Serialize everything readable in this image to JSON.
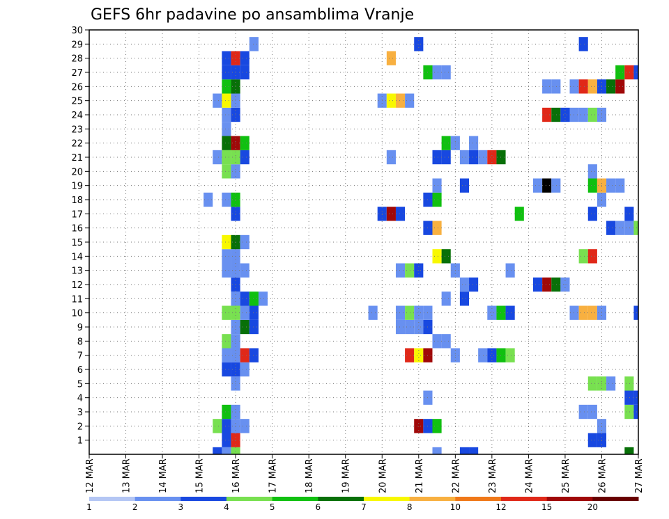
{
  "chart_data": {
    "type": "heatmap",
    "title": "GEFS 6hr padavine po ansamblima Vranje",
    "x_ticks": [
      "12 MAR",
      "13 MAR",
      "14 MAR",
      "15 MAR",
      "16 MAR",
      "17 MAR",
      "18 MAR",
      "19 MAR",
      "20 MAR",
      "21 MAR",
      "22 MAR",
      "23 MAR",
      "24 MAR",
      "25 MAR",
      "26 MAR",
      "27 MAR"
    ],
    "y_ticks": [
      "1",
      "2",
      "3",
      "4",
      "5",
      "6",
      "7",
      "8",
      "9",
      "10",
      "11",
      "12",
      "13",
      "14",
      "15",
      "16",
      "17",
      "18",
      "19",
      "20",
      "21",
      "22",
      "23",
      "24",
      "25",
      "26",
      "27",
      "28",
      "29",
      "30"
    ],
    "x_unit": "day of March, 6-hour steps",
    "xlim": [
      12,
      27
    ],
    "ylim": [
      0,
      30
    ],
    "grid": true,
    "legend_position": "bottom",
    "color_scale": {
      "bins": [
        "1-2",
        "2-3",
        "3-4",
        "4-5",
        "5-6",
        "6-7",
        "7-8",
        "8-10",
        "10-12",
        "12-15",
        "15-20",
        "20+"
      ],
      "labels": [
        "1",
        "2",
        "3",
        "4",
        "5",
        "6",
        "7",
        "8",
        "10",
        "12",
        "15",
        "20"
      ],
      "colors": [
        "#b4c6f4",
        "#6890f0",
        "#1848e0",
        "#78e050",
        "#10c010",
        "#087008",
        "#f8f800",
        "#f8b040",
        "#f07818",
        "#e02818",
        "#a00808",
        "#680000"
      ]
    },
    "cells": [
      [
        15.5,
        0,
        2
      ],
      [
        15.75,
        0,
        1
      ],
      [
        16,
        0,
        3
      ],
      [
        21.5,
        0,
        1
      ],
      [
        22.25,
        0,
        2
      ],
      [
        22.5,
        0,
        2
      ],
      [
        26.75,
        0,
        5
      ],
      [
        15.75,
        1,
        2
      ],
      [
        16,
        1,
        9
      ],
      [
        25.75,
        1,
        2
      ],
      [
        26,
        1,
        2
      ],
      [
        15.5,
        2,
        3
      ],
      [
        15.75,
        2,
        2
      ],
      [
        16,
        2,
        1
      ],
      [
        16.25,
        2,
        1
      ],
      [
        21,
        2,
        10
      ],
      [
        21.25,
        2,
        2
      ],
      [
        21.5,
        2,
        4
      ],
      [
        26,
        2,
        1
      ],
      [
        15.75,
        3,
        4
      ],
      [
        16,
        3,
        1
      ],
      [
        25.5,
        3,
        1
      ],
      [
        25.75,
        3,
        1
      ],
      [
        26.75,
        3,
        3
      ],
      [
        27,
        3,
        2
      ],
      [
        21.25,
        4,
        1
      ],
      [
        26.75,
        4,
        2
      ],
      [
        27,
        4,
        2
      ],
      [
        16,
        5,
        1
      ],
      [
        25.75,
        5,
        3
      ],
      [
        26,
        5,
        3
      ],
      [
        26.25,
        5,
        1
      ],
      [
        26.75,
        5,
        3
      ],
      [
        15.75,
        6,
        2
      ],
      [
        16,
        6,
        2
      ],
      [
        16.25,
        6,
        1
      ],
      [
        15.75,
        7,
        1
      ],
      [
        16,
        7,
        1
      ],
      [
        16.25,
        7,
        9
      ],
      [
        16.5,
        7,
        2
      ],
      [
        20.75,
        7,
        9
      ],
      [
        21,
        7,
        6
      ],
      [
        21.25,
        7,
        10
      ],
      [
        22,
        7,
        1
      ],
      [
        22.75,
        7,
        1
      ],
      [
        23,
        7,
        2
      ],
      [
        23.25,
        7,
        4
      ],
      [
        23.5,
        7,
        3
      ],
      [
        15.75,
        8,
        3
      ],
      [
        16,
        8,
        1
      ],
      [
        21.5,
        8,
        1
      ],
      [
        21.75,
        8,
        1
      ],
      [
        16,
        9,
        1
      ],
      [
        16.25,
        9,
        5
      ],
      [
        16.5,
        9,
        2
      ],
      [
        20.5,
        9,
        1
      ],
      [
        20.75,
        9,
        1
      ],
      [
        21,
        9,
        1
      ],
      [
        21.25,
        9,
        2
      ],
      [
        15.75,
        10,
        3
      ],
      [
        16,
        10,
        3
      ],
      [
        16.25,
        10,
        1
      ],
      [
        16.5,
        10,
        2
      ],
      [
        19.75,
        10,
        1
      ],
      [
        20.5,
        10,
        1
      ],
      [
        20.75,
        10,
        3
      ],
      [
        21,
        10,
        1
      ],
      [
        21.25,
        10,
        1
      ],
      [
        23,
        10,
        1
      ],
      [
        23.25,
        10,
        4
      ],
      [
        23.5,
        10,
        2
      ],
      [
        25.25,
        10,
        1
      ],
      [
        25.5,
        10,
        7
      ],
      [
        25.75,
        10,
        7
      ],
      [
        26,
        10,
        1
      ],
      [
        27,
        10,
        2
      ],
      [
        16,
        11,
        1
      ],
      [
        16.25,
        11,
        2
      ],
      [
        16.5,
        11,
        4
      ],
      [
        16.75,
        11,
        1
      ],
      [
        21.75,
        11,
        1
      ],
      [
        22.25,
        11,
        2
      ],
      [
        16,
        12,
        2
      ],
      [
        22.25,
        12,
        1
      ],
      [
        22.5,
        12,
        2
      ],
      [
        24.25,
        12,
        2
      ],
      [
        24.5,
        12,
        10
      ],
      [
        24.75,
        12,
        5
      ],
      [
        25,
        12,
        1
      ],
      [
        15.75,
        13,
        1
      ],
      [
        16,
        13,
        1
      ],
      [
        16.25,
        13,
        1
      ],
      [
        20.5,
        13,
        1
      ],
      [
        20.75,
        13,
        3
      ],
      [
        21,
        13,
        2
      ],
      [
        22,
        13,
        1
      ],
      [
        23.5,
        13,
        1
      ],
      [
        15.75,
        14,
        1
      ],
      [
        16,
        14,
        1
      ],
      [
        21.5,
        14,
        6
      ],
      [
        21.75,
        14,
        5
      ],
      [
        25.5,
        14,
        3
      ],
      [
        25.75,
        14,
        9
      ],
      [
        15.75,
        15,
        6
      ],
      [
        16,
        15,
        5
      ],
      [
        16.25,
        15,
        1
      ],
      [
        21.25,
        16,
        2
      ],
      [
        21.5,
        16,
        7
      ],
      [
        26.25,
        16,
        2
      ],
      [
        26.5,
        16,
        1
      ],
      [
        26.75,
        16,
        1
      ],
      [
        27,
        16,
        3
      ],
      [
        16,
        17,
        2
      ],
      [
        20,
        17,
        2
      ],
      [
        20.25,
        17,
        10
      ],
      [
        20.5,
        17,
        2
      ],
      [
        23.75,
        17,
        4
      ],
      [
        25.75,
        17,
        2
      ],
      [
        26.75,
        17,
        2
      ],
      [
        15.25,
        18,
        1
      ],
      [
        15.75,
        18,
        1
      ],
      [
        16,
        18,
        4
      ],
      [
        21.25,
        18,
        2
      ],
      [
        21.5,
        18,
        4
      ],
      [
        26,
        18,
        1
      ],
      [
        21.5,
        19,
        1
      ],
      [
        22.25,
        19,
        2
      ],
      [
        24.25,
        19,
        1
      ],
      [
        24.5,
        19,
        12
      ],
      [
        24.75,
        19,
        1
      ],
      [
        25.75,
        19,
        4
      ],
      [
        26,
        19,
        7
      ],
      [
        26.25,
        19,
        1
      ],
      [
        26.5,
        19,
        1
      ],
      [
        15.75,
        20,
        3
      ],
      [
        16,
        20,
        1
      ],
      [
        25.75,
        20,
        1
      ],
      [
        15.5,
        21,
        1
      ],
      [
        15.75,
        21,
        3
      ],
      [
        16,
        21,
        3
      ],
      [
        16.25,
        21,
        2
      ],
      [
        20.25,
        21,
        1
      ],
      [
        21.5,
        21,
        2
      ],
      [
        21.75,
        21,
        2
      ],
      [
        22.25,
        21,
        1
      ],
      [
        22.5,
        21,
        2
      ],
      [
        22.75,
        21,
        1
      ],
      [
        23,
        21,
        9
      ],
      [
        23.25,
        21,
        5
      ],
      [
        15.75,
        22,
        5
      ],
      [
        16,
        22,
        10
      ],
      [
        16.25,
        22,
        4
      ],
      [
        21.75,
        22,
        4
      ],
      [
        22,
        22,
        1
      ],
      [
        22.5,
        22,
        1
      ],
      [
        15.75,
        23,
        1
      ],
      [
        15.75,
        24,
        1
      ],
      [
        16,
        24,
        2
      ],
      [
        24.5,
        24,
        9
      ],
      [
        24.75,
        24,
        5
      ],
      [
        25,
        24,
        2
      ],
      [
        25.25,
        24,
        1
      ],
      [
        25.5,
        24,
        1
      ],
      [
        25.75,
        24,
        3
      ],
      [
        26,
        24,
        1
      ],
      [
        15.5,
        25,
        1
      ],
      [
        15.75,
        25,
        6
      ],
      [
        16,
        25,
        1
      ],
      [
        20,
        25,
        1
      ],
      [
        20.25,
        25,
        6
      ],
      [
        20.5,
        25,
        7
      ],
      [
        20.75,
        25,
        1
      ],
      [
        15.75,
        26,
        4
      ],
      [
        16,
        26,
        5
      ],
      [
        24.5,
        26,
        1
      ],
      [
        24.75,
        26,
        1
      ],
      [
        25.25,
        26,
        1
      ],
      [
        25.5,
        26,
        9
      ],
      [
        25.75,
        26,
        7
      ],
      [
        26,
        26,
        2
      ],
      [
        26.25,
        26,
        5
      ],
      [
        26.5,
        26,
        10
      ],
      [
        15.75,
        27,
        2
      ],
      [
        16,
        27,
        2
      ],
      [
        16.25,
        27,
        2
      ],
      [
        21.25,
        27,
        4
      ],
      [
        21.5,
        27,
        1
      ],
      [
        21.75,
        27,
        1
      ],
      [
        26.5,
        27,
        4
      ],
      [
        26.75,
        27,
        9
      ],
      [
        27,
        27,
        2
      ],
      [
        15.75,
        28,
        2
      ],
      [
        16,
        28,
        9
      ],
      [
        16.25,
        28,
        2
      ],
      [
        20.25,
        28,
        7
      ],
      [
        16.5,
        29,
        1
      ],
      [
        21,
        29,
        2
      ],
      [
        25.5,
        29,
        2
      ]
    ]
  }
}
